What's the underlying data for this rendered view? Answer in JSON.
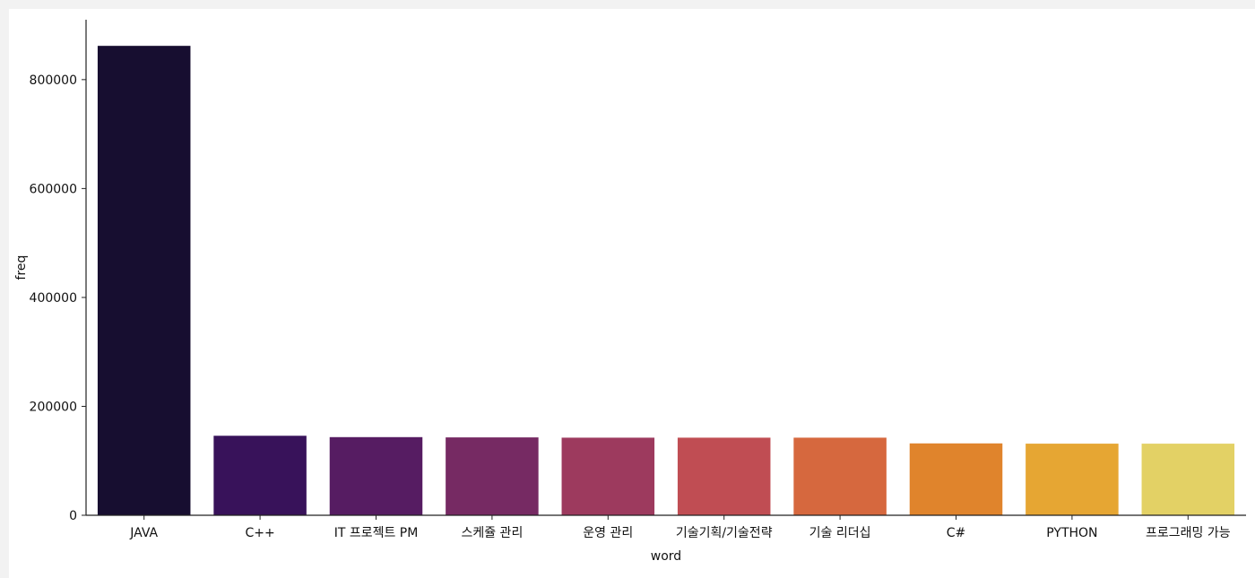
{
  "chart_data": {
    "type": "bar",
    "xlabel": "word",
    "ylabel": "freq",
    "categories": [
      "JAVA",
      "C++",
      "IT 프로젝트 PM",
      "스케쥴 관리",
      "운영 관리",
      "기술기획/기술전략",
      "기술 리더십",
      "C#",
      "PYTHON",
      "프로그래밍 가능"
    ],
    "values": [
      862000,
      146000,
      143500,
      143000,
      142500,
      142500,
      142500,
      132000,
      131500,
      131500
    ],
    "ylim": [
      0,
      910000
    ],
    "yticks": [
      0,
      200000,
      400000,
      600000,
      800000
    ],
    "ytick_labels": [
      "0",
      "200000",
      "400000",
      "600000",
      "800000"
    ],
    "colors": [
      "#170e30",
      "#38125a",
      "#561c62",
      "#762a63",
      "#9d3a5e",
      "#c04d53",
      "#d6683e",
      "#e0842c",
      "#e6a633",
      "#e3d165"
    ],
    "grid": false,
    "legend": "none"
  }
}
